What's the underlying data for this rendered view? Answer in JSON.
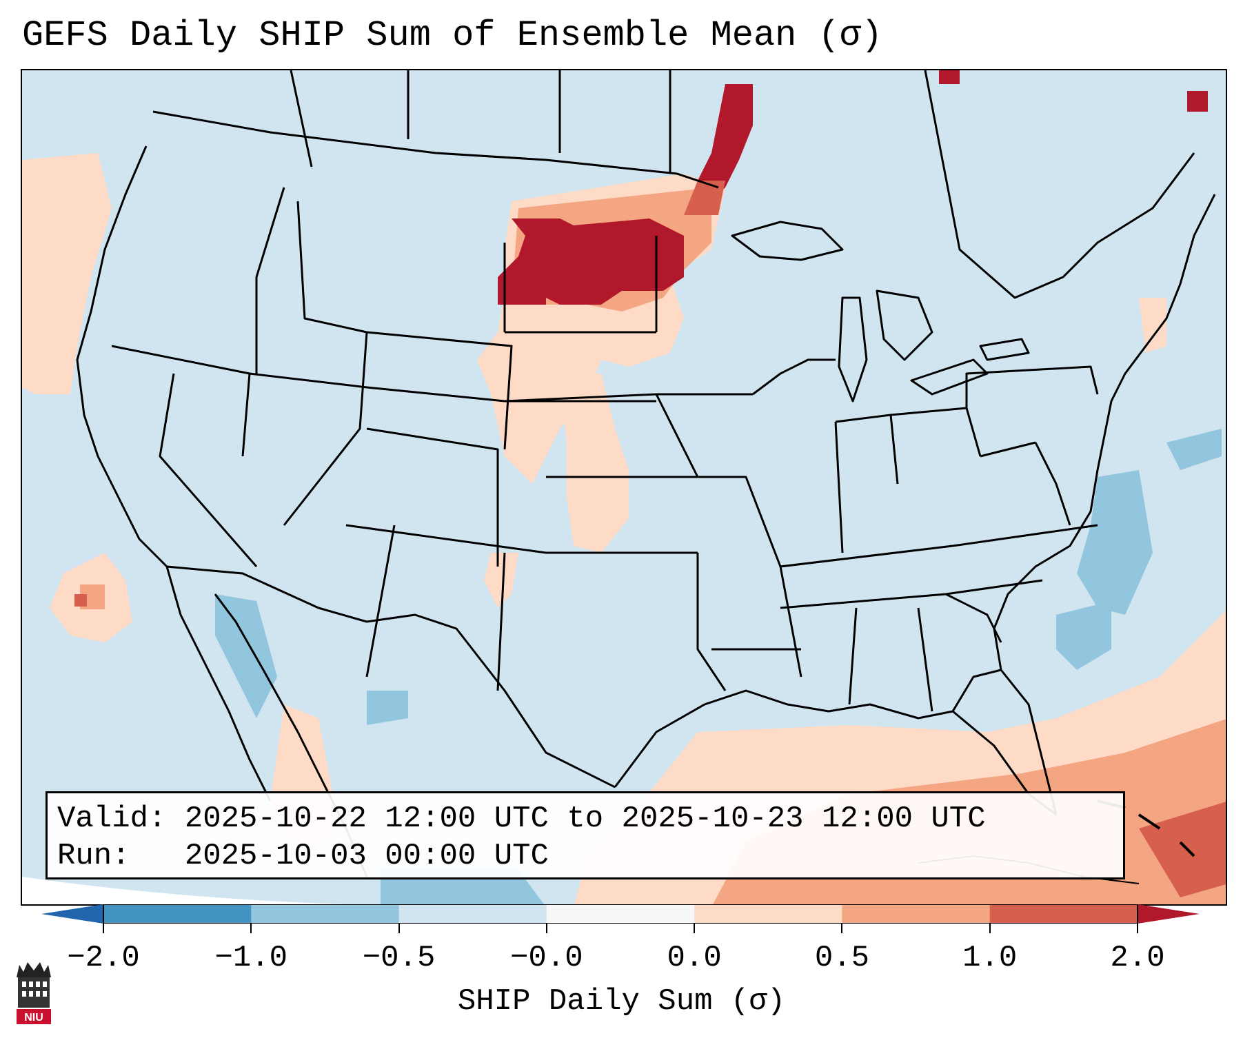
{
  "title": "GEFS Daily SHIP Sum of Ensemble Mean (σ)",
  "info": {
    "valid_line": "Valid: 2025-10-22 12:00 UTC to 2025-10-23 12:00 UTC",
    "run_line": "Run:   2025-10-03 00:00 UTC"
  },
  "colorbar": {
    "title": "SHIP Daily Sum (σ)",
    "tick_labels": [
      "−2.0",
      "−1.0",
      "−0.5",
      "−0.0",
      "0.0",
      "0.5",
      "1.0",
      "2.0"
    ],
    "colors": [
      "#4393c3",
      "#92c5de",
      "#d1e5f0",
      "#f7f7f7",
      "#fddbc7",
      "#f4a582",
      "#d6604d"
    ],
    "under_color": "#2166ac",
    "over_color": "#b2182b"
  },
  "map": {
    "region": "CONUS",
    "land_ocean_default_color": "#d1e5f0",
    "boundary_color": "#000000",
    "logo_icon": "niu-logo-icon",
    "logo_text": "NIU"
  }
}
